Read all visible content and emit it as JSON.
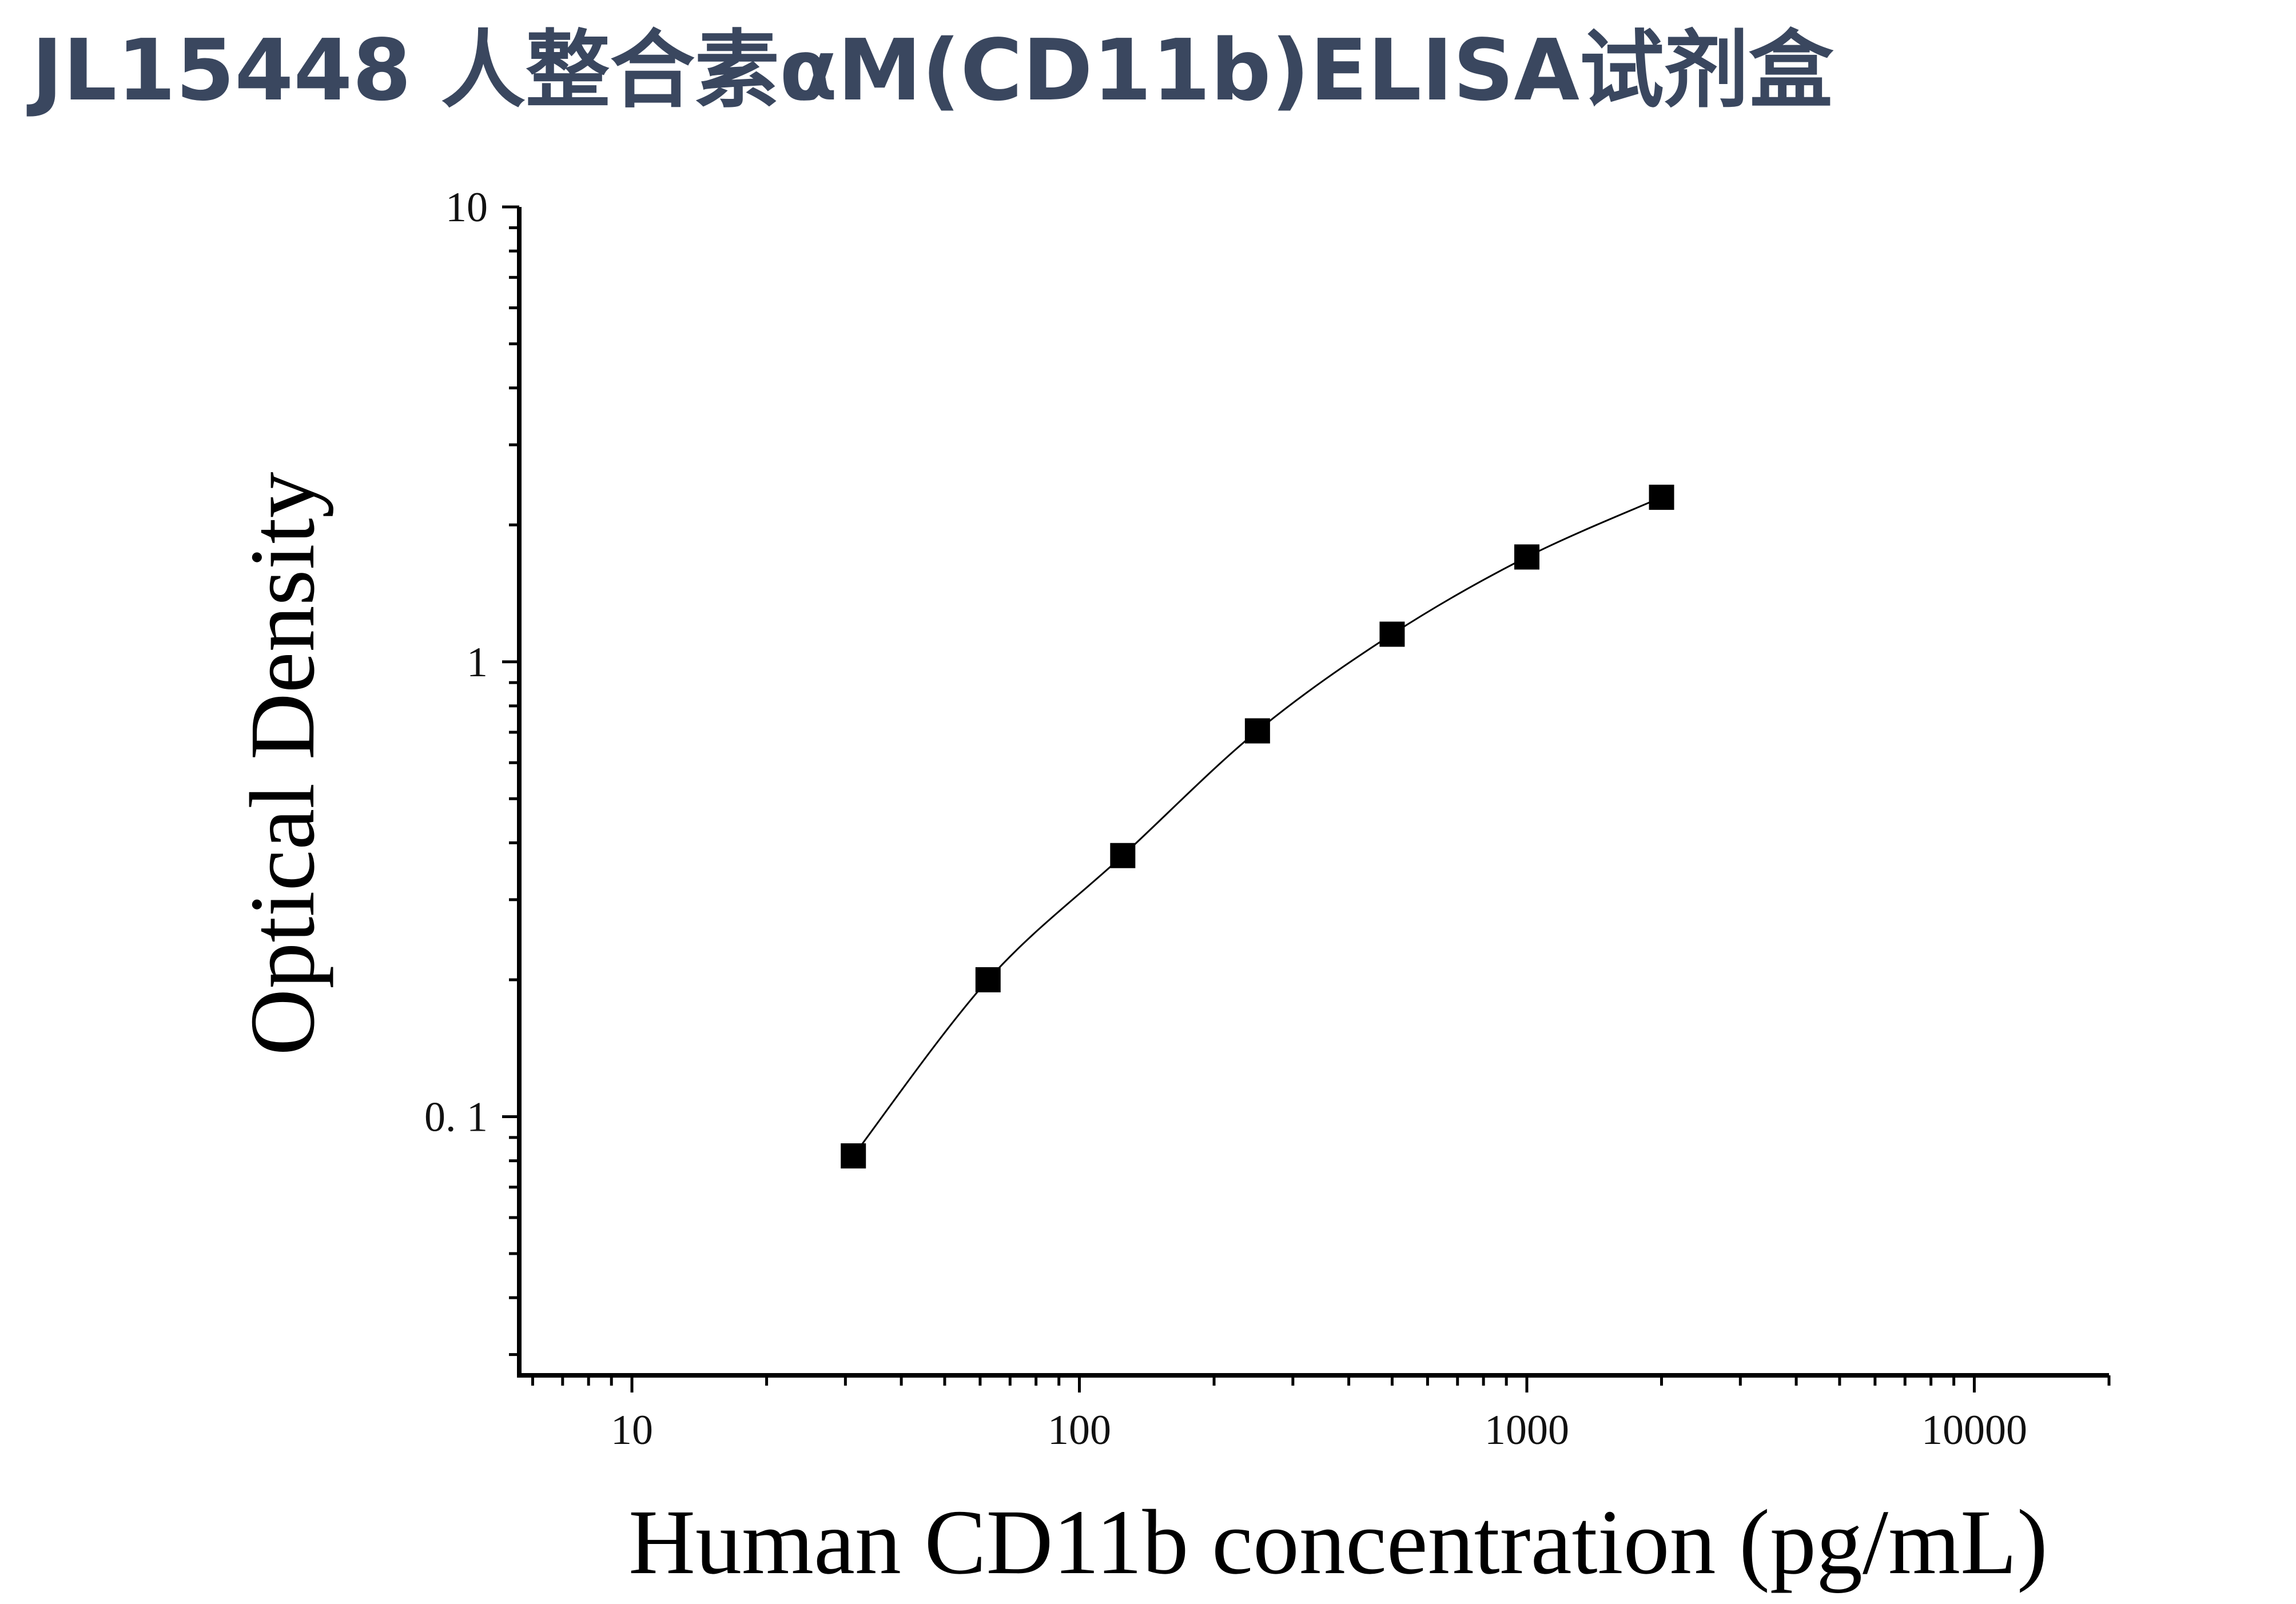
{
  "chart_data": {
    "type": "scatter",
    "title": "JL15448 人整合素αM(CD11b)ELISA试剂盒",
    "xlabel": "Human CD11b concentration (pg/mL)",
    "ylabel": "Optical Density",
    "x_scale": "log",
    "y_scale": "log",
    "xlim": [
      5.6,
      20000
    ],
    "ylim": [
      0.027,
      10
    ],
    "x_ticks": [
      "10",
      "100",
      "1000",
      "10000"
    ],
    "y_ticks": [
      "0. 1",
      "1",
      "10"
    ],
    "grid": false,
    "legend": "none",
    "fit_curve": true,
    "series": [
      {
        "marker": "square",
        "color": "#000000",
        "x": [
          31.25,
          62.5,
          125,
          250,
          500,
          1000,
          2000
        ],
        "y": [
          0.082,
          0.2,
          0.375,
          0.705,
          1.15,
          1.7,
          2.3
        ]
      }
    ]
  }
}
